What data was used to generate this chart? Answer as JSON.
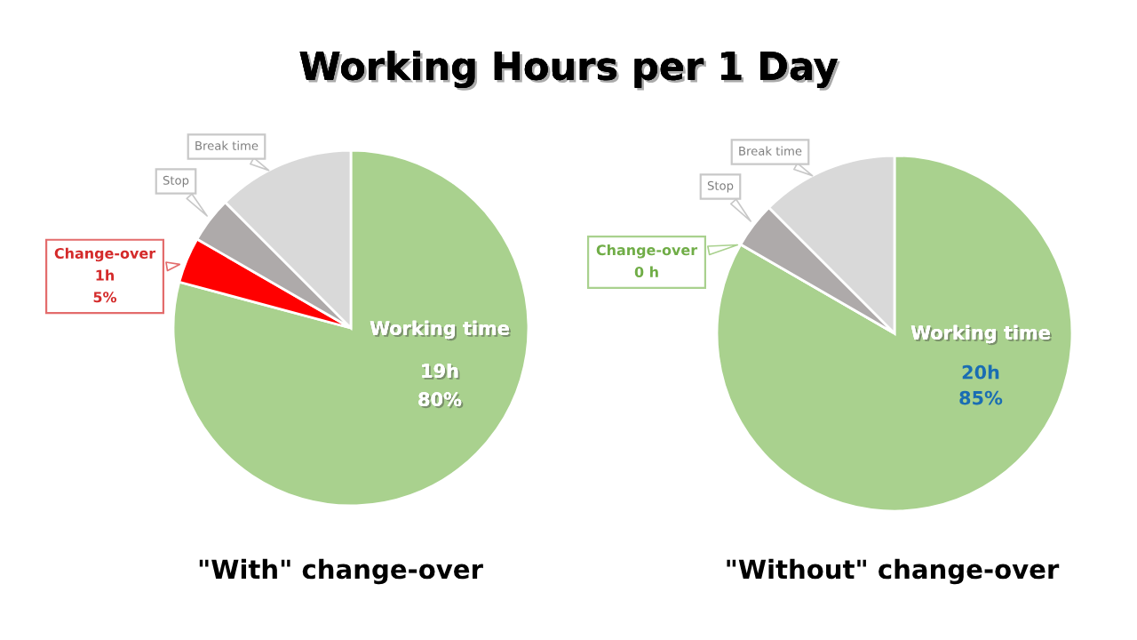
{
  "chart_data": [
    {
      "type": "pie",
      "title": "Working Hours per 1 Day",
      "xlabel": "\"With\" change-over",
      "categories": [
        "Working time",
        "Change-over",
        "Stop",
        "Break time"
      ],
      "values": [
        19,
        1,
        1,
        3
      ],
      "colors": [
        "#a9d18e",
        "#ff0000",
        "#aeaaaa",
        "#d9d9d9"
      ],
      "value_labels": [
        "19h\n80%",
        "1h\n5%",
        null,
        null
      ]
    },
    {
      "type": "pie",
      "xlabel": "\"Without\" change-over",
      "categories": [
        "Working time",
        "Change-over",
        "Stop",
        "Break time"
      ],
      "values": [
        20,
        0,
        1,
        3
      ],
      "colors": [
        "#a9d18e",
        null,
        "#aeaaaa",
        "#d9d9d9"
      ],
      "value_labels": [
        "20h\n85%",
        "0 h",
        null,
        null
      ]
    }
  ]
}
